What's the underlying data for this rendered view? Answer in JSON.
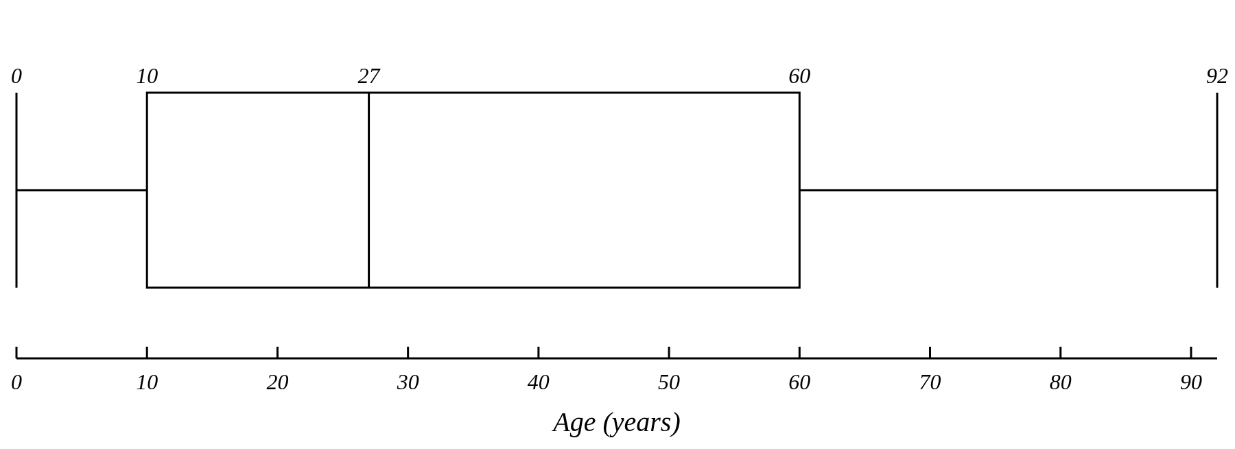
{
  "chart_data": {
    "type": "box",
    "orientation": "horizontal",
    "categories": [
      null
    ],
    "boxes": [
      {
        "low": 0,
        "q1": 10,
        "median": 27,
        "q3": 60,
        "high": 92
      }
    ],
    "annotations": [
      "0",
      "10",
      "27",
      "60",
      "92"
    ],
    "xlabel": "Age (years)",
    "xlim": [
      0,
      92
    ],
    "xticks": [
      0,
      10,
      20,
      30,
      40,
      50,
      60,
      70,
      80,
      90
    ]
  }
}
